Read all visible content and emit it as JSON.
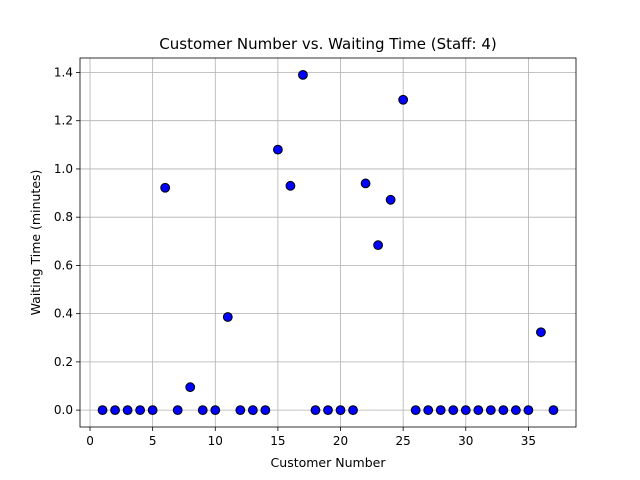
{
  "chart_data": {
    "type": "scatter",
    "title": "Customer Number vs. Waiting Time (Staff: 4)",
    "xlabel": "Customer Number",
    "ylabel": "Waiting Time (minutes)",
    "xlim": [
      -0.8,
      38.8
    ],
    "ylim": [
      -0.07,
      1.46
    ],
    "xticks": [
      0,
      5,
      10,
      15,
      20,
      25,
      30,
      35
    ],
    "yticks": [
      0.0,
      0.2,
      0.4,
      0.6,
      0.8,
      1.0,
      1.2,
      1.4
    ],
    "xtick_labels": [
      "0",
      "5",
      "10",
      "15",
      "20",
      "25",
      "30",
      "35"
    ],
    "ytick_labels": [
      "0.0",
      "0.2",
      "0.4",
      "0.6",
      "0.8",
      "1.0",
      "1.2",
      "1.4"
    ],
    "grid": true,
    "marker_color": "#0000ff",
    "marker_edge_color": "#000000",
    "x": [
      1,
      2,
      3,
      4,
      5,
      6,
      7,
      8,
      9,
      10,
      11,
      12,
      13,
      14,
      15,
      16,
      17,
      18,
      19,
      20,
      21,
      22,
      23,
      24,
      25,
      26,
      27,
      28,
      29,
      30,
      31,
      32,
      33,
      34,
      35,
      36,
      37
    ],
    "y": [
      0,
      0,
      0,
      0,
      0,
      0.922,
      0,
      0.095,
      0,
      0,
      0.386,
      0,
      0,
      0,
      1.08,
      0.93,
      1.39,
      0,
      0,
      0,
      0,
      0.94,
      0.684,
      0.872,
      1.287,
      0,
      0,
      0,
      0,
      0,
      0,
      0,
      0,
      0,
      0,
      0.323,
      0
    ]
  }
}
